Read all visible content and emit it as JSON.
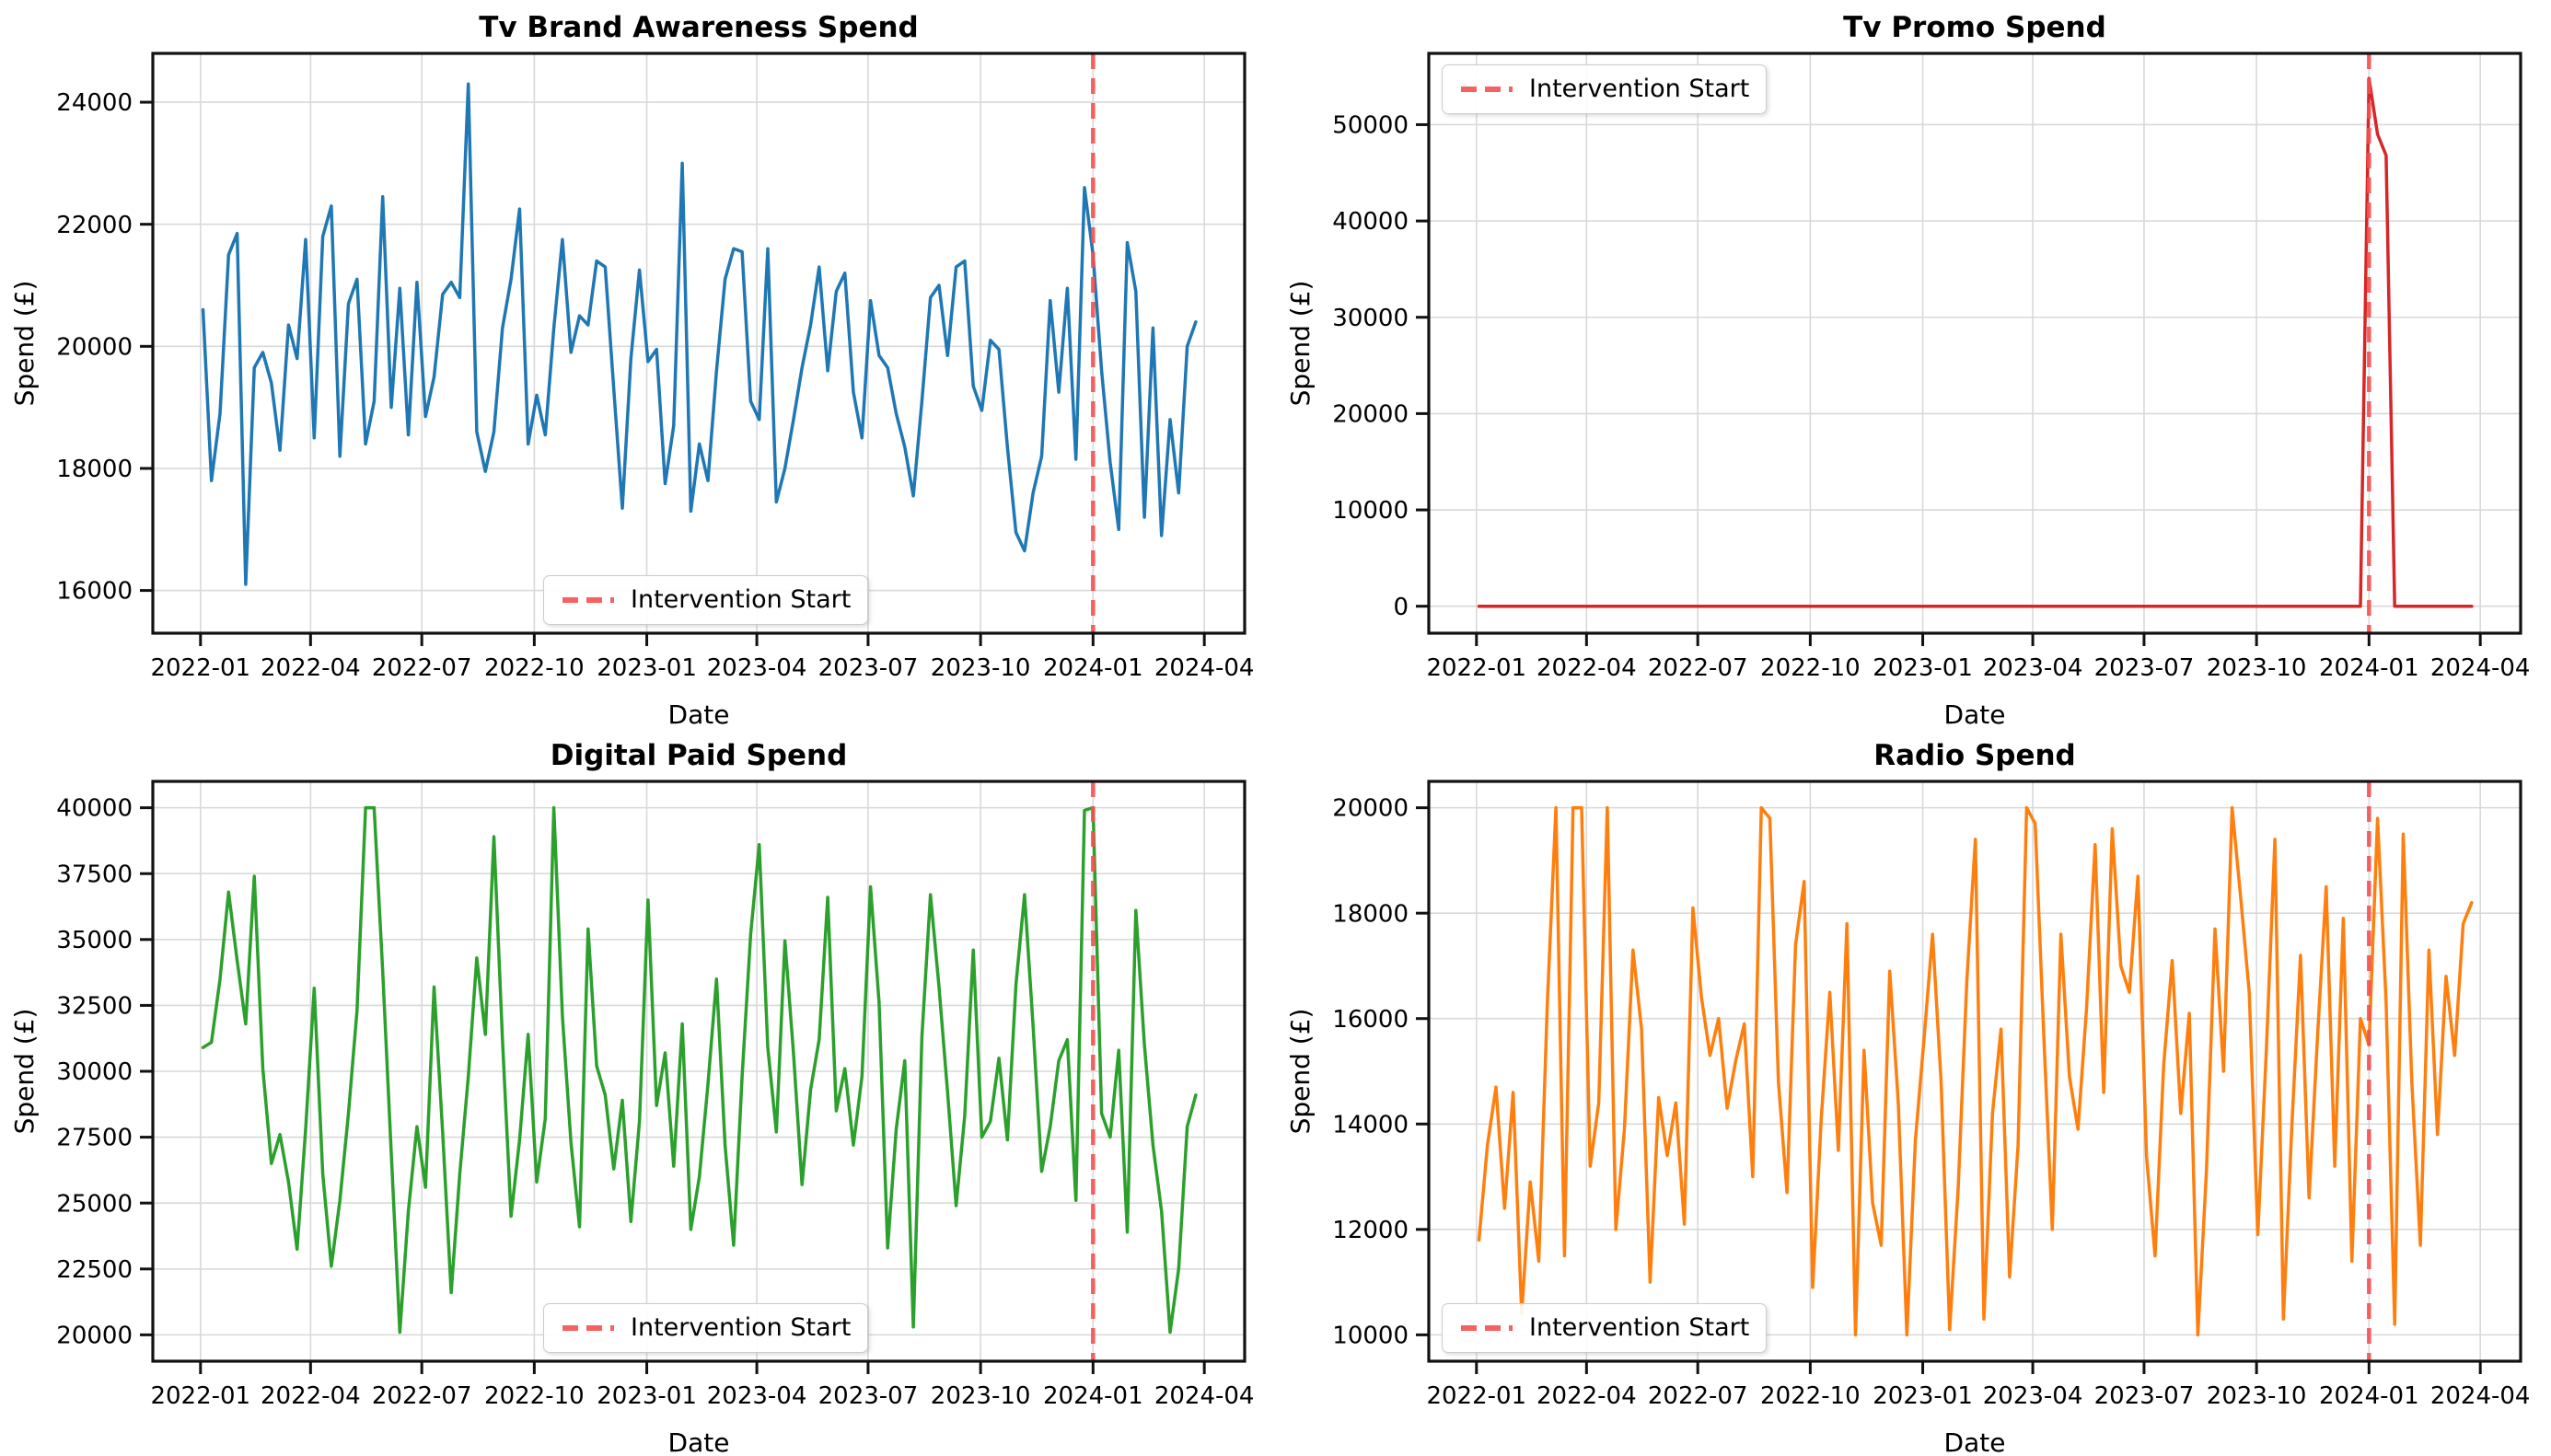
{
  "figure": {
    "xlabel": "Date",
    "ylabel": "Spend (£)",
    "legend_label": "Intervention Start",
    "intervention_date": "2024-01-01",
    "intervention_color": "#f65050",
    "x_start": "2022-01-03",
    "x_step_days": 7,
    "n_points": 117,
    "xlim": [
      "2021-11-23",
      "2024-05-04"
    ],
    "xtick_dates": [
      "2022-01-01",
      "2022-04-01",
      "2022-07-01",
      "2022-10-01",
      "2023-01-01",
      "2023-04-01",
      "2023-07-01",
      "2023-10-01",
      "2024-01-01",
      "2024-04-01"
    ],
    "xtick_labels": [
      "2022-01",
      "2022-04",
      "2022-07",
      "2022-10",
      "2023-01",
      "2023-04",
      "2023-07",
      "2023-10",
      "2024-01",
      "2024-04"
    ],
    "grid": true
  },
  "chart_data": [
    {
      "id": "tv_brand_awareness",
      "type": "line",
      "title": "Tv Brand Awareness Spend",
      "color": "#1f77b4",
      "xlabel": "Date",
      "ylabel": "Spend (£)",
      "legend_loc": "lower center",
      "yticks": [
        16000,
        18000,
        20000,
        22000,
        24000
      ],
      "ylim": [
        15300,
        24800
      ],
      "values": [
        20600,
        17800,
        18900,
        21500,
        21850,
        16100,
        19650,
        19900,
        19400,
        18300,
        20350,
        19800,
        21750,
        18500,
        21800,
        22300,
        18200,
        20700,
        21100,
        18400,
        19100,
        22450,
        19000,
        20950,
        18550,
        21050,
        18850,
        19500,
        20850,
        21050,
        20800,
        24300,
        18600,
        17950,
        18600,
        20300,
        21100,
        22250,
        18400,
        19200,
        18550,
        20300,
        21750,
        19900,
        20500,
        20350,
        21400,
        21300,
        19300,
        17350,
        19800,
        21250,
        19750,
        19950,
        17750,
        18700,
        23000,
        17300,
        18400,
        17800,
        19600,
        21100,
        21600,
        21550,
        19100,
        18800,
        21600,
        17450,
        18000,
        18800,
        19650,
        20350,
        21300,
        19600,
        20900,
        21200,
        19250,
        18500,
        20750,
        19850,
        19650,
        18900,
        18350,
        17550,
        19100,
        20800,
        21000,
        19850,
        21300,
        21400,
        19350,
        18950,
        20100,
        19950,
        18350,
        16950,
        16650,
        17600,
        18200,
        20750,
        19250,
        20950,
        18150,
        22600,
        21500,
        19600,
        18100,
        17000,
        21700,
        20900,
        17200,
        20300,
        16900,
        18800,
        17600,
        20000,
        20400
      ]
    },
    {
      "id": "tv_promo",
      "type": "line",
      "title": "Tv Promo Spend",
      "color": "#d62728",
      "xlabel": "Date",
      "ylabel": "Spend (£)",
      "legend_loc": "upper left",
      "yticks": [
        0,
        10000,
        20000,
        30000,
        40000,
        50000
      ],
      "ylim": [
        -2800,
        57400
      ],
      "values": [
        0,
        0,
        0,
        0,
        0,
        0,
        0,
        0,
        0,
        0,
        0,
        0,
        0,
        0,
        0,
        0,
        0,
        0,
        0,
        0,
        0,
        0,
        0,
        0,
        0,
        0,
        0,
        0,
        0,
        0,
        0,
        0,
        0,
        0,
        0,
        0,
        0,
        0,
        0,
        0,
        0,
        0,
        0,
        0,
        0,
        0,
        0,
        0,
        0,
        0,
        0,
        0,
        0,
        0,
        0,
        0,
        0,
        0,
        0,
        0,
        0,
        0,
        0,
        0,
        0,
        0,
        0,
        0,
        0,
        0,
        0,
        0,
        0,
        0,
        0,
        0,
        0,
        0,
        0,
        0,
        0,
        0,
        0,
        0,
        0,
        0,
        0,
        0,
        0,
        0,
        0,
        0,
        0,
        0,
        0,
        0,
        0,
        0,
        0,
        0,
        0,
        0,
        0,
        0,
        54800,
        49000,
        46800,
        0,
        0,
        0,
        0,
        0,
        0,
        0,
        0,
        0,
        0
      ]
    },
    {
      "id": "digital_paid",
      "type": "line",
      "title": "Digital Paid Spend",
      "color": "#2ca02c",
      "xlabel": "Date",
      "ylabel": "Spend (£)",
      "legend_loc": "lower center",
      "yticks": [
        20000,
        22500,
        25000,
        27500,
        30000,
        32500,
        35000,
        37500,
        40000
      ],
      "ylim": [
        19000,
        41000
      ],
      "values": [
        30900,
        31100,
        33500,
        36800,
        34200,
        31800,
        37400,
        30100,
        26500,
        27600,
        25800,
        23250,
        27800,
        33150,
        26100,
        22600,
        25100,
        28400,
        32300,
        40000,
        40000,
        33800,
        26900,
        20100,
        24700,
        27900,
        25600,
        33200,
        27700,
        21600,
        26100,
        29800,
        34300,
        31400,
        38900,
        31200,
        24500,
        27400,
        31400,
        25800,
        28200,
        40000,
        32100,
        27300,
        24100,
        35400,
        30200,
        29100,
        26300,
        28900,
        24300,
        28100,
        36500,
        28700,
        30700,
        26400,
        31800,
        24000,
        26000,
        29500,
        33500,
        27200,
        23400,
        29800,
        35200,
        38600,
        30900,
        27700,
        34950,
        30700,
        25700,
        29300,
        31200,
        36600,
        28500,
        30100,
        27200,
        29800,
        37000,
        32600,
        23300,
        27800,
        30400,
        20300,
        31300,
        36700,
        33200,
        29200,
        24900,
        28300,
        34600,
        27500,
        28100,
        30500,
        27400,
        33300,
        36700,
        31700,
        26200,
        27900,
        30400,
        31200,
        25100,
        39900,
        40000,
        28400,
        27500,
        30800,
        23900,
        36100,
        31000,
        27200,
        24700,
        20100,
        22500,
        27900,
        29100
      ]
    },
    {
      "id": "radio",
      "type": "line",
      "title": "Radio Spend",
      "color": "#ff7f0e",
      "xlabel": "Date",
      "ylabel": "Spend (£)",
      "legend_loc": "lower left",
      "yticks": [
        10000,
        12000,
        14000,
        16000,
        18000,
        20000
      ],
      "ylim": [
        9500,
        20500
      ],
      "values": [
        11800,
        13600,
        14700,
        12400,
        14600,
        10400,
        12900,
        11400,
        16300,
        20000,
        11500,
        20000,
        20000,
        13200,
        14400,
        20000,
        12000,
        13900,
        17300,
        15800,
        11000,
        14500,
        13400,
        14400,
        12100,
        18100,
        16400,
        15300,
        16000,
        14300,
        15200,
        15900,
        13000,
        20000,
        19800,
        14800,
        12700,
        17400,
        18600,
        10900,
        14100,
        16500,
        13500,
        17800,
        10000,
        15400,
        12500,
        11700,
        16900,
        14400,
        10000,
        13700,
        15600,
        17600,
        14800,
        10100,
        12800,
        16700,
        19400,
        10300,
        14200,
        15800,
        11100,
        13600,
        20000,
        19700,
        15700,
        12000,
        17600,
        14900,
        13900,
        16200,
        19300,
        14600,
        19600,
        17000,
        16500,
        18700,
        13400,
        11500,
        15100,
        17100,
        14200,
        16100,
        10000,
        13100,
        17700,
        15000,
        20000,
        18300,
        16500,
        11900,
        15400,
        19400,
        10300,
        14000,
        17200,
        12600,
        15700,
        18500,
        13200,
        17900,
        11400,
        16000,
        15500,
        19800,
        16300,
        10200,
        19500,
        14800,
        11700,
        17300,
        13800,
        16800,
        15300,
        17800,
        18200
      ]
    }
  ]
}
